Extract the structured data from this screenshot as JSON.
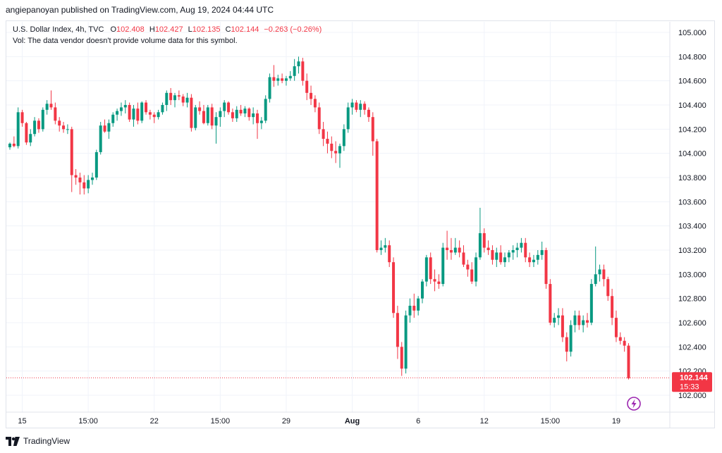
{
  "publish_line": "angiepanoyan published on TradingView.com, Aug 19, 2024 04:44 UTC",
  "legend": {
    "symbol": "U.S. Dollar Index, 4h, TVC",
    "o_label": "O",
    "o": "102.408",
    "h_label": "H",
    "h": "102.427",
    "l_label": "L",
    "l": "102.135",
    "c_label": "C",
    "c": "102.144",
    "change": "−0.263 (−0.26%)",
    "vol_note": "Vol: The data vendor doesn't provide volume data for this symbol."
  },
  "footer": {
    "brand": "TradingView",
    "logo_icon": "tradingview-logo-icon"
  },
  "colors": {
    "up": "#089981",
    "down": "#f23645",
    "grid": "#f0f3fa",
    "axis_text": "#131722",
    "price_line": "#f23645"
  },
  "chart_data": {
    "type": "candlestick",
    "symbol": "U.S. Dollar Index",
    "interval": "4h",
    "ylim": [
      101.95,
      105.1
    ],
    "yticks": [
      "105.000",
      "104.800",
      "104.600",
      "104.400",
      "104.200",
      "104.000",
      "103.800",
      "103.600",
      "103.400",
      "103.200",
      "103.000",
      "102.800",
      "102.600",
      "102.400",
      "102.200",
      "102.000"
    ],
    "xticks": [
      "15",
      "15:00",
      "22",
      "15:00",
      "29",
      "Aug",
      "6",
      "12",
      "15:00",
      "19"
    ],
    "xtick_index": [
      3,
      19,
      35,
      51,
      67,
      83,
      99,
      115,
      131,
      147
    ],
    "last_price": "102.144",
    "countdown": "15:33",
    "grid": true,
    "candles": [
      [
        104.05,
        104.09,
        104.03,
        104.08
      ],
      [
        104.08,
        104.14,
        104.05,
        104.06
      ],
      [
        104.06,
        104.38,
        104.04,
        104.34
      ],
      [
        104.34,
        104.36,
        104.22,
        104.25
      ],
      [
        104.25,
        104.26,
        104.07,
        104.09
      ],
      [
        104.09,
        104.2,
        104.06,
        104.16
      ],
      [
        104.16,
        104.3,
        104.14,
        104.27
      ],
      [
        104.27,
        104.29,
        104.17,
        104.2
      ],
      [
        104.2,
        104.38,
        104.18,
        104.36
      ],
      [
        104.36,
        104.44,
        104.32,
        104.41
      ],
      [
        104.41,
        104.52,
        104.36,
        104.38
      ],
      [
        104.38,
        104.42,
        104.24,
        104.27
      ],
      [
        104.27,
        104.3,
        104.18,
        104.23
      ],
      [
        104.23,
        104.26,
        104.17,
        104.2
      ],
      [
        104.2,
        104.24,
        104.16,
        104.2
      ],
      [
        104.2,
        104.22,
        103.68,
        103.82
      ],
      [
        103.82,
        103.87,
        103.74,
        103.8
      ],
      [
        103.8,
        103.84,
        103.66,
        103.76
      ],
      [
        103.76,
        103.82,
        103.66,
        103.71
      ],
      [
        103.71,
        103.82,
        103.67,
        103.78
      ],
      [
        103.78,
        103.84,
        103.74,
        103.8
      ],
      [
        103.8,
        104.03,
        103.78,
        104.01
      ],
      [
        104.01,
        104.26,
        103.99,
        104.23
      ],
      [
        104.23,
        104.28,
        104.17,
        104.18
      ],
      [
        104.18,
        104.28,
        104.12,
        104.25
      ],
      [
        104.25,
        104.34,
        104.22,
        104.32
      ],
      [
        104.32,
        104.37,
        104.27,
        104.35
      ],
      [
        104.35,
        104.42,
        104.31,
        104.38
      ],
      [
        104.38,
        104.44,
        104.33,
        104.4
      ],
      [
        104.4,
        104.42,
        104.26,
        104.28
      ],
      [
        104.28,
        104.4,
        104.22,
        104.37
      ],
      [
        104.37,
        104.42,
        104.24,
        104.27
      ],
      [
        104.27,
        104.43,
        104.25,
        104.42
      ],
      [
        104.42,
        104.44,
        104.32,
        104.34
      ],
      [
        104.34,
        104.36,
        104.28,
        104.32
      ],
      [
        104.32,
        104.34,
        104.25,
        104.3
      ],
      [
        104.3,
        104.36,
        104.28,
        104.34
      ],
      [
        104.34,
        104.42,
        104.32,
        104.4
      ],
      [
        104.4,
        104.52,
        104.35,
        104.5
      ],
      [
        104.5,
        104.54,
        104.4,
        104.44
      ],
      [
        104.44,
        104.5,
        104.38,
        104.48
      ],
      [
        104.48,
        104.52,
        104.44,
        104.47
      ],
      [
        104.47,
        104.49,
        104.39,
        104.42
      ],
      [
        104.42,
        104.5,
        104.38,
        104.46
      ],
      [
        104.46,
        104.49,
        104.18,
        104.21
      ],
      [
        104.21,
        104.4,
        104.19,
        104.38
      ],
      [
        104.38,
        104.43,
        104.32,
        104.35
      ],
      [
        104.35,
        104.4,
        104.24,
        104.25
      ],
      [
        104.25,
        104.4,
        104.23,
        104.38
      ],
      [
        104.38,
        104.41,
        104.2,
        104.23
      ],
      [
        104.23,
        104.34,
        104.08,
        104.3
      ],
      [
        104.3,
        104.38,
        104.22,
        104.35
      ],
      [
        104.35,
        104.44,
        104.3,
        104.42
      ],
      [
        104.42,
        104.43,
        104.32,
        104.34
      ],
      [
        104.34,
        104.37,
        104.26,
        104.29
      ],
      [
        104.29,
        104.39,
        104.26,
        104.36
      ],
      [
        104.36,
        104.4,
        104.31,
        104.33
      ],
      [
        104.33,
        104.39,
        104.3,
        104.37
      ],
      [
        104.37,
        104.38,
        104.27,
        104.3
      ],
      [
        104.3,
        104.38,
        104.24,
        104.33
      ],
      [
        104.33,
        104.36,
        104.12,
        104.25
      ],
      [
        104.25,
        104.3,
        104.2,
        104.27
      ],
      [
        104.27,
        104.48,
        104.25,
        104.45
      ],
      [
        104.45,
        104.66,
        104.42,
        104.63
      ],
      [
        104.63,
        104.73,
        104.55,
        104.6
      ],
      [
        104.6,
        104.65,
        104.56,
        104.62
      ],
      [
        104.62,
        104.66,
        104.58,
        104.6
      ],
      [
        104.6,
        104.64,
        104.56,
        104.62
      ],
      [
        104.62,
        104.68,
        104.6,
        104.64
      ],
      [
        104.64,
        104.78,
        104.6,
        104.72
      ],
      [
        104.72,
        104.8,
        104.66,
        104.76
      ],
      [
        104.76,
        104.79,
        104.56,
        104.6
      ],
      [
        104.6,
        104.66,
        104.44,
        104.5
      ],
      [
        104.5,
        104.56,
        104.4,
        104.45
      ],
      [
        104.45,
        104.48,
        104.34,
        104.38
      ],
      [
        104.38,
        104.42,
        104.16,
        104.2
      ],
      [
        104.2,
        104.26,
        104.06,
        104.12
      ],
      [
        104.12,
        104.18,
        104.0,
        104.08
      ],
      [
        104.08,
        104.14,
        103.96,
        104.02
      ],
      [
        104.02,
        104.1,
        103.92,
        104.0
      ],
      [
        104.0,
        104.08,
        103.88,
        104.06
      ],
      [
        104.06,
        104.24,
        104.02,
        104.2
      ],
      [
        104.2,
        104.42,
        104.17,
        104.38
      ],
      [
        104.38,
        104.45,
        104.32,
        104.42
      ],
      [
        104.42,
        104.44,
        104.34,
        104.36
      ],
      [
        104.36,
        104.44,
        104.3,
        104.41
      ],
      [
        104.41,
        104.43,
        104.32,
        104.36
      ],
      [
        104.36,
        104.38,
        104.26,
        104.3
      ],
      [
        104.3,
        104.34,
        103.98,
        104.1
      ],
      [
        104.1,
        104.12,
        103.18,
        103.2
      ],
      [
        103.2,
        103.28,
        103.16,
        103.22
      ],
      [
        103.22,
        103.3,
        103.18,
        103.24
      ],
      [
        103.24,
        103.28,
        103.06,
        103.1
      ],
      [
        103.1,
        103.14,
        102.64,
        102.68
      ],
      [
        102.68,
        102.74,
        102.3,
        102.4
      ],
      [
        102.4,
        102.44,
        102.16,
        102.22
      ],
      [
        102.22,
        102.7,
        102.18,
        102.66
      ],
      [
        102.66,
        102.8,
        102.6,
        102.74
      ],
      [
        102.74,
        102.84,
        102.64,
        102.7
      ],
      [
        102.7,
        102.82,
        102.66,
        102.8
      ],
      [
        102.8,
        102.96,
        102.76,
        102.94
      ],
      [
        102.94,
        103.16,
        102.9,
        103.14
      ],
      [
        103.14,
        103.18,
        102.92,
        102.96
      ],
      [
        102.96,
        103.04,
        102.86,
        102.94
      ],
      [
        102.94,
        103.0,
        102.88,
        102.92
      ],
      [
        102.92,
        103.26,
        102.9,
        103.22
      ],
      [
        103.22,
        103.36,
        103.12,
        103.2
      ],
      [
        103.2,
        103.3,
        103.12,
        103.18
      ],
      [
        103.18,
        103.3,
        103.16,
        103.22
      ],
      [
        103.22,
        103.28,
        103.14,
        103.18
      ],
      [
        103.18,
        103.24,
        103.06,
        103.08
      ],
      [
        103.08,
        103.12,
        102.98,
        103.04
      ],
      [
        103.04,
        103.1,
        102.92,
        102.94
      ],
      [
        102.94,
        103.18,
        102.9,
        103.14
      ],
      [
        103.14,
        103.55,
        103.12,
        103.34
      ],
      [
        103.34,
        103.38,
        103.18,
        103.22
      ],
      [
        103.22,
        103.28,
        103.16,
        103.2
      ],
      [
        103.2,
        103.24,
        103.08,
        103.12
      ],
      [
        103.12,
        103.22,
        103.06,
        103.18
      ],
      [
        103.18,
        103.24,
        103.08,
        103.1
      ],
      [
        103.1,
        103.18,
        103.06,
        103.14
      ],
      [
        103.14,
        103.2,
        103.1,
        103.18
      ],
      [
        103.18,
        103.24,
        103.12,
        103.2
      ],
      [
        103.2,
        103.26,
        103.14,
        103.22
      ],
      [
        103.22,
        103.3,
        103.18,
        103.26
      ],
      [
        103.26,
        103.3,
        103.1,
        103.14
      ],
      [
        103.14,
        103.18,
        103.06,
        103.1
      ],
      [
        103.1,
        103.16,
        103.06,
        103.12
      ],
      [
        103.12,
        103.2,
        103.08,
        103.16
      ],
      [
        103.16,
        103.27,
        103.12,
        103.2
      ],
      [
        103.2,
        103.22,
        102.88,
        102.92
      ],
      [
        102.92,
        102.96,
        102.58,
        102.6
      ],
      [
        102.6,
        102.68,
        102.56,
        102.64
      ],
      [
        102.64,
        102.72,
        102.58,
        102.66
      ],
      [
        102.66,
        102.72,
        102.44,
        102.48
      ],
      [
        102.48,
        102.52,
        102.28,
        102.36
      ],
      [
        102.36,
        102.62,
        102.32,
        102.58
      ],
      [
        102.58,
        102.7,
        102.52,
        102.66
      ],
      [
        102.66,
        102.7,
        102.54,
        102.58
      ],
      [
        102.58,
        102.66,
        102.52,
        102.62
      ],
      [
        102.62,
        102.68,
        102.56,
        102.6
      ],
      [
        102.6,
        102.96,
        102.58,
        102.92
      ],
      [
        102.92,
        103.23,
        102.9,
        103.0
      ],
      [
        103.0,
        103.08,
        102.94,
        103.04
      ],
      [
        103.04,
        103.08,
        102.9,
        102.96
      ],
      [
        102.96,
        102.98,
        102.78,
        102.82
      ],
      [
        102.82,
        102.88,
        102.58,
        102.64
      ],
      [
        102.64,
        102.7,
        102.44,
        102.48
      ],
      [
        102.48,
        102.52,
        102.42,
        102.45
      ],
      [
        102.45,
        102.48,
        102.36,
        102.41
      ],
      [
        102.41,
        102.43,
        102.13,
        102.14
      ]
    ]
  }
}
